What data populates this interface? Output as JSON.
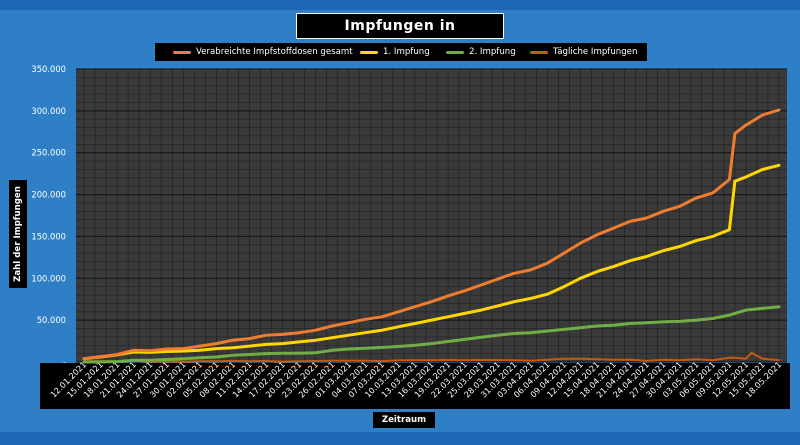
{
  "chart_data": {
    "type": "line",
    "title": "Impfungen in Düsseldorf",
    "xlabel": "Zeitraum",
    "ylabel": "Zahl der Impfungen",
    "ylim": [
      0,
      350000
    ],
    "yticks": [
      0,
      50000,
      100000,
      150000,
      200000,
      250000,
      300000,
      350000
    ],
    "ytick_labels": [
      "-",
      "50.000",
      "100.000",
      "150.000",
      "200.000",
      "250.000",
      "300.000",
      "350.000"
    ],
    "x_start_label": "12.01.2021",
    "x_tick_labels": [
      "12.01.2021",
      "15.01.2021",
      "18.01.2021",
      "21.01.2021",
      "24.01.2021",
      "27.01.2021",
      "30.01.2021",
      "02.02.2021",
      "05.02.2021",
      "08.02.2021",
      "11.02.2021",
      "14.02.2021",
      "17.02.2021",
      "20.02.2021",
      "23.02.2021",
      "26.02.2021",
      "01.03.2021",
      "04.03.2021",
      "07.03.2021",
      "10.03.2021",
      "13.03.2021",
      "16.03.2021",
      "19.03.2021",
      "22.03.2021",
      "25.03.2021",
      "28.03.2021",
      "31.03.2021",
      "03.04.2021",
      "06.04.2021",
      "09.04.2021",
      "12.04.2021",
      "15.04.2021",
      "18.04.2021",
      "21.04.2021",
      "24.04.2021",
      "27.04.2021",
      "30.04.2021",
      "03.05.2021",
      "06.05.2021",
      "09.05.2021",
      "12.05.2021",
      "15.05.2021",
      "18.05.2021"
    ],
    "grid": true,
    "legend_position": "top",
    "background": "#3a3a3a",
    "series": [
      {
        "name": "Verabreichte Impfstoffdosen gesamt",
        "color": "#ef7d31",
        "points": [
          [
            "12.01.2021",
            4000
          ],
          [
            "15.01.2021",
            6500
          ],
          [
            "18.01.2021",
            9000
          ],
          [
            "21.01.2021",
            14000
          ],
          [
            "24.01.2021",
            13500
          ],
          [
            "27.01.2021",
            15500
          ],
          [
            "30.01.2021",
            16000
          ],
          [
            "02.02.2021",
            19000
          ],
          [
            "05.02.2021",
            22000
          ],
          [
            "08.02.2021",
            26000
          ],
          [
            "11.02.2021",
            28000
          ],
          [
            "14.02.2021",
            32000
          ],
          [
            "17.02.2021",
            33000
          ],
          [
            "20.02.2021",
            35000
          ],
          [
            "23.02.2021",
            38000
          ],
          [
            "26.02.2021",
            43000
          ],
          [
            "01.03.2021",
            47000
          ],
          [
            "04.03.2021",
            51000
          ],
          [
            "07.03.2021",
            54000
          ],
          [
            "10.03.2021",
            60000
          ],
          [
            "13.03.2021",
            66000
          ],
          [
            "16.03.2021",
            72000
          ],
          [
            "19.03.2021",
            79000
          ],
          [
            "22.03.2021",
            85000
          ],
          [
            "25.03.2021",
            92000
          ],
          [
            "28.03.2021",
            99000
          ],
          [
            "31.03.2021",
            106000
          ],
          [
            "03.04.2021",
            110000
          ],
          [
            "06.04.2021",
            118000
          ],
          [
            "09.04.2021",
            130000
          ],
          [
            "12.04.2021",
            142000
          ],
          [
            "15.04.2021",
            152000
          ],
          [
            "18.04.2021",
            160000
          ],
          [
            "21.04.2021",
            168000
          ],
          [
            "24.04.2021",
            172000
          ],
          [
            "27.04.2021",
            180000
          ],
          [
            "30.04.2021",
            186000
          ],
          [
            "03.05.2021",
            196000
          ],
          [
            "06.05.2021",
            202000
          ],
          [
            "09.05.2021",
            218000
          ],
          [
            "10.05.2021",
            273000
          ],
          [
            "12.05.2021",
            283000
          ],
          [
            "15.05.2021",
            295000
          ],
          [
            "18.05.2021",
            301000
          ]
        ]
      },
      {
        "name": "1. Impfung",
        "color": "#ffd700",
        "points": [
          [
            "12.01.2021",
            4000
          ],
          [
            "15.01.2021",
            6000
          ],
          [
            "18.01.2021",
            8500
          ],
          [
            "21.01.2021",
            12000
          ],
          [
            "24.01.2021",
            11500
          ],
          [
            "27.01.2021",
            12500
          ],
          [
            "30.01.2021",
            13000
          ],
          [
            "02.02.2021",
            14000
          ],
          [
            "05.02.2021",
            16000
          ],
          [
            "08.02.2021",
            17000
          ],
          [
            "11.02.2021",
            19000
          ],
          [
            "14.02.2021",
            21000
          ],
          [
            "17.02.2021",
            22000
          ],
          [
            "20.02.2021",
            24000
          ],
          [
            "23.02.2021",
            26000
          ],
          [
            "26.02.2021",
            29000
          ],
          [
            "01.03.2021",
            32000
          ],
          [
            "04.03.2021",
            35000
          ],
          [
            "07.03.2021",
            38000
          ],
          [
            "10.03.2021",
            42000
          ],
          [
            "13.03.2021",
            46000
          ],
          [
            "16.03.2021",
            50000
          ],
          [
            "19.03.2021",
            54000
          ],
          [
            "22.03.2021",
            58000
          ],
          [
            "25.03.2021",
            62000
          ],
          [
            "28.03.2021",
            67000
          ],
          [
            "31.03.2021",
            72000
          ],
          [
            "03.04.2021",
            76000
          ],
          [
            "06.04.2021",
            81000
          ],
          [
            "09.04.2021",
            90000
          ],
          [
            "12.04.2021",
            100000
          ],
          [
            "15.04.2021",
            108000
          ],
          [
            "18.04.2021",
            114000
          ],
          [
            "21.04.2021",
            121000
          ],
          [
            "24.04.2021",
            126000
          ],
          [
            "27.04.2021",
            133000
          ],
          [
            "30.04.2021",
            138000
          ],
          [
            "03.05.2021",
            145000
          ],
          [
            "06.05.2021",
            150000
          ],
          [
            "09.05.2021",
            158000
          ],
          [
            "10.05.2021",
            216000
          ],
          [
            "12.05.2021",
            221000
          ],
          [
            "15.05.2021",
            230000
          ],
          [
            "18.05.2021",
            235000
          ]
        ]
      },
      {
        "name": "2. Impfung",
        "color": "#70ad47",
        "points": [
          [
            "12.01.2021",
            0
          ],
          [
            "15.01.2021",
            0
          ],
          [
            "18.01.2021",
            500
          ],
          [
            "21.01.2021",
            2000
          ],
          [
            "24.01.2021",
            2000
          ],
          [
            "27.01.2021",
            3000
          ],
          [
            "30.01.2021",
            4000
          ],
          [
            "02.02.2021",
            5000
          ],
          [
            "05.02.2021",
            6000
          ],
          [
            "08.02.2021",
            8000
          ],
          [
            "11.02.2021",
            9000
          ],
          [
            "14.02.2021",
            10000
          ],
          [
            "17.02.2021",
            10500
          ],
          [
            "20.02.2021",
            10500
          ],
          [
            "23.02.2021",
            11000
          ],
          [
            "26.02.2021",
            14000
          ],
          [
            "01.03.2021",
            15500
          ],
          [
            "04.03.2021",
            16500
          ],
          [
            "07.03.2021",
            17500
          ],
          [
            "10.03.2021",
            18500
          ],
          [
            "13.03.2021",
            20000
          ],
          [
            "16.03.2021",
            22000
          ],
          [
            "19.03.2021",
            24500
          ],
          [
            "22.03.2021",
            27000
          ],
          [
            "25.03.2021",
            29500
          ],
          [
            "28.03.2021",
            32000
          ],
          [
            "31.03.2021",
            34000
          ],
          [
            "03.04.2021",
            35000
          ],
          [
            "06.04.2021",
            37000
          ],
          [
            "09.04.2021",
            39000
          ],
          [
            "12.04.2021",
            41000
          ],
          [
            "15.04.2021",
            43000
          ],
          [
            "18.04.2021",
            44000
          ],
          [
            "21.04.2021",
            46000
          ],
          [
            "24.04.2021",
            47000
          ],
          [
            "27.04.2021",
            48000
          ],
          [
            "30.04.2021",
            48500
          ],
          [
            "03.05.2021",
            50000
          ],
          [
            "06.05.2021",
            52000
          ],
          [
            "09.05.2021",
            56000
          ],
          [
            "10.05.2021",
            58000
          ],
          [
            "12.05.2021",
            62000
          ],
          [
            "15.05.2021",
            64000
          ],
          [
            "18.05.2021",
            66000
          ]
        ]
      },
      {
        "name": "Tägliche Impfungen",
        "color": "#c55a11",
        "points": [
          [
            "12.01.2021",
            1000
          ],
          [
            "15.01.2021",
            800
          ],
          [
            "18.01.2021",
            700
          ],
          [
            "21.01.2021",
            1500
          ],
          [
            "24.01.2021",
            200
          ],
          [
            "27.01.2021",
            700
          ],
          [
            "30.01.2021",
            300
          ],
          [
            "02.02.2021",
            1000
          ],
          [
            "05.02.2021",
            1000
          ],
          [
            "08.02.2021",
            1300
          ],
          [
            "11.02.2021",
            800
          ],
          [
            "14.02.2021",
            1300
          ],
          [
            "17.02.2021",
            500
          ],
          [
            "20.02.2021",
            1000
          ],
          [
            "23.02.2021",
            1200
          ],
          [
            "26.02.2021",
            1500
          ],
          [
            "01.03.2021",
            1400
          ],
          [
            "04.03.2021",
            1500
          ],
          [
            "07.03.2021",
            1100
          ],
          [
            "10.03.2021",
            1900
          ],
          [
            "13.03.2021",
            2100
          ],
          [
            "16.03.2021",
            2000
          ],
          [
            "19.03.2021",
            2400
          ],
          [
            "22.03.2021",
            2000
          ],
          [
            "25.03.2021",
            2400
          ],
          [
            "28.03.2021",
            2300
          ],
          [
            "31.03.2021",
            2200
          ],
          [
            "03.04.2021",
            1400
          ],
          [
            "06.04.2021",
            2800
          ],
          [
            "09.04.2021",
            4000
          ],
          [
            "12.04.2021",
            4000
          ],
          [
            "15.04.2021",
            3200
          ],
          [
            "18.04.2021",
            2700
          ],
          [
            "21.04.2021",
            2700
          ],
          [
            "24.04.2021",
            1300
          ],
          [
            "27.04.2021",
            2700
          ],
          [
            "30.04.2021",
            2000
          ],
          [
            "03.05.2021",
            3300
          ],
          [
            "06.05.2021",
            2000
          ],
          [
            "09.05.2021",
            5000
          ],
          [
            "10.05.2021",
            5000
          ],
          [
            "12.05.2021",
            4000
          ],
          [
            "13.05.2021",
            11000
          ],
          [
            "15.05.2021",
            4000
          ],
          [
            "18.05.2021",
            2000
          ]
        ]
      }
    ]
  }
}
